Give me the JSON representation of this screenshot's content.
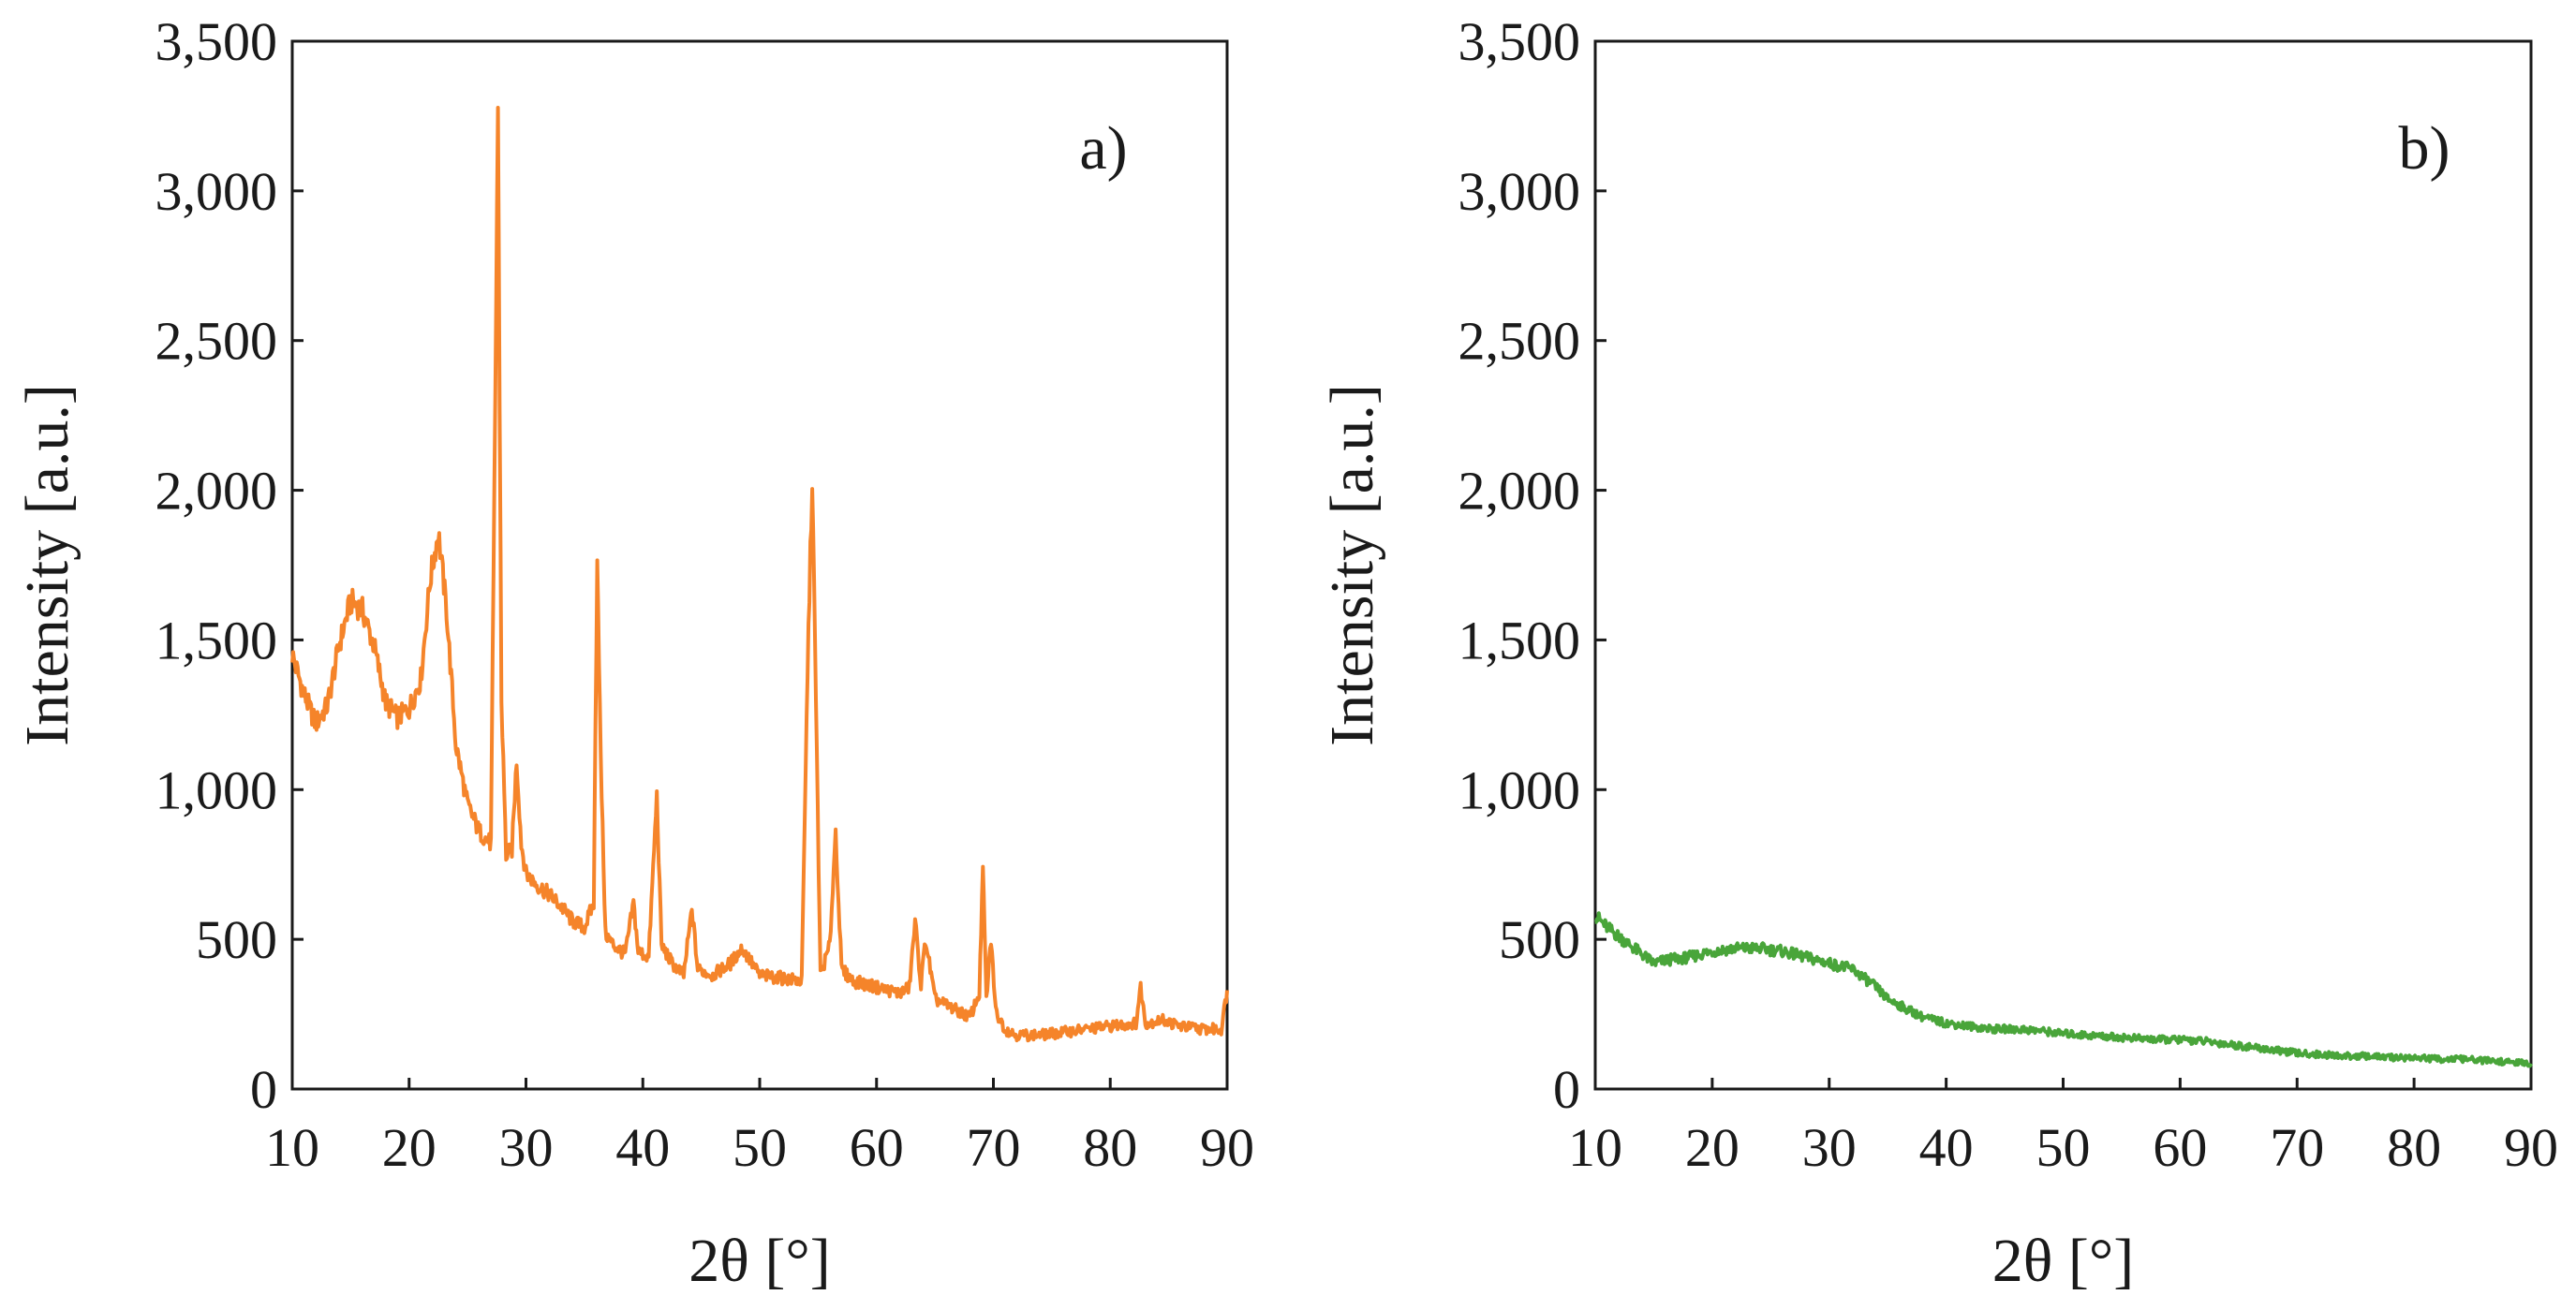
{
  "figure": {
    "panels": [
      "a)",
      "b)"
    ]
  },
  "chart_data": [
    {
      "type": "line",
      "panel_label": "a)",
      "title": "",
      "xlabel": "2θ [°]",
      "ylabel": "Intensity [a.u.]",
      "xlim": [
        10,
        90
      ],
      "ylim": [
        0,
        3500
      ],
      "xticks": [
        10,
        20,
        30,
        40,
        50,
        60,
        70,
        80,
        90
      ],
      "xtick_labels": [
        "10",
        "20",
        "30",
        "40",
        "50",
        "60",
        "70",
        "80",
        "90"
      ],
      "yticks": [
        0,
        500,
        1000,
        1500,
        2000,
        2500,
        3000,
        3500
      ],
      "ytick_labels": [
        "0",
        "500",
        "1,000",
        "1,500",
        "2,000",
        "2,500",
        "3,000",
        "3,500"
      ],
      "grid": false,
      "series": [
        {
          "name": "a)",
          "color": "#f5842a",
          "x": [
            10,
            11,
            12,
            13,
            14,
            15,
            16,
            17,
            18,
            19,
            20,
            21,
            21.8,
            22.5,
            23.2,
            24,
            25,
            26,
            27,
            27.3,
            27.6,
            27.9,
            28.3,
            28.8,
            29.2,
            29.6,
            30,
            31,
            32,
            33,
            34,
            35,
            35.8,
            36.1,
            36.4,
            36.8,
            37.5,
            38.5,
            39.2,
            39.6,
            40.5,
            41.2,
            41.6,
            42.5,
            43.5,
            44.2,
            44.7,
            46,
            47.5,
            48.5,
            50,
            52,
            53.6,
            54.1,
            54.5,
            55.2,
            56,
            56.5,
            57,
            58,
            60,
            62,
            62.8,
            63.3,
            63.8,
            64.2,
            65,
            66,
            67,
            68,
            68.8,
            69.1,
            69.4,
            69.8,
            70.2,
            71,
            72,
            74,
            76,
            78,
            80,
            82.2,
            82.6,
            83,
            84.5,
            86,
            88,
            89.5,
            90
          ],
          "values": [
            1450,
            1320,
            1220,
            1280,
            1480,
            1630,
            1600,
            1480,
            1290,
            1240,
            1270,
            1370,
            1700,
            1860,
            1600,
            1150,
            950,
            860,
            820,
            2000,
            3280,
            1300,
            780,
            800,
            1100,
            820,
            720,
            680,
            650,
            610,
            560,
            540,
            620,
            1800,
            1100,
            520,
            480,
            450,
            620,
            460,
            440,
            980,
            480,
            420,
            380,
            600,
            400,
            380,
            420,
            470,
            380,
            370,
            360,
            1400,
            2040,
            380,
            480,
            860,
            400,
            360,
            340,
            320,
            340,
            560,
            350,
            500,
            300,
            280,
            260,
            240,
            320,
            740,
            300,
            500,
            260,
            200,
            180,
            180,
            190,
            200,
            210,
            220,
            340,
            220,
            230,
            210,
            200,
            200,
            330
          ]
        }
      ]
    },
    {
      "type": "line",
      "panel_label": "b)",
      "title": "",
      "xlabel": "2θ [°]",
      "ylabel": "Intensity [a.u.]",
      "xlim": [
        10,
        90
      ],
      "ylim": [
        0,
        3500
      ],
      "xticks": [
        10,
        20,
        30,
        40,
        50,
        60,
        70,
        80,
        90
      ],
      "xtick_labels": [
        "10",
        "20",
        "30",
        "40",
        "50",
        "60",
        "70",
        "80",
        "90"
      ],
      "yticks": [
        0,
        500,
        1000,
        1500,
        2000,
        2500,
        3000,
        3500
      ],
      "ytick_labels": [
        "0",
        "500",
        "1,000",
        "1,500",
        "2,000",
        "2,500",
        "3,000",
        "3,500"
      ],
      "grid": false,
      "series": [
        {
          "name": "b)",
          "color": "#49a53a",
          "x": [
            10,
            11,
            12,
            13,
            14,
            15,
            16,
            18,
            20,
            22,
            24,
            26,
            28,
            30,
            32,
            33,
            34,
            35,
            36,
            37,
            38,
            39,
            40,
            42,
            44,
            46,
            48,
            50,
            52,
            54,
            56,
            58,
            60,
            62,
            64,
            66,
            68,
            70,
            72,
            74,
            76,
            78,
            80,
            82,
            84,
            86,
            88,
            90
          ],
          "values": [
            580,
            540,
            510,
            480,
            450,
            420,
            430,
            440,
            460,
            470,
            470,
            460,
            440,
            420,
            400,
            370,
            340,
            300,
            280,
            260,
            240,
            230,
            220,
            210,
            200,
            200,
            195,
            185,
            180,
            175,
            170,
            165,
            165,
            160,
            150,
            140,
            130,
            120,
            115,
            110,
            110,
            105,
            105,
            100,
            100,
            95,
            90,
            85
          ]
        }
      ]
    }
  ]
}
